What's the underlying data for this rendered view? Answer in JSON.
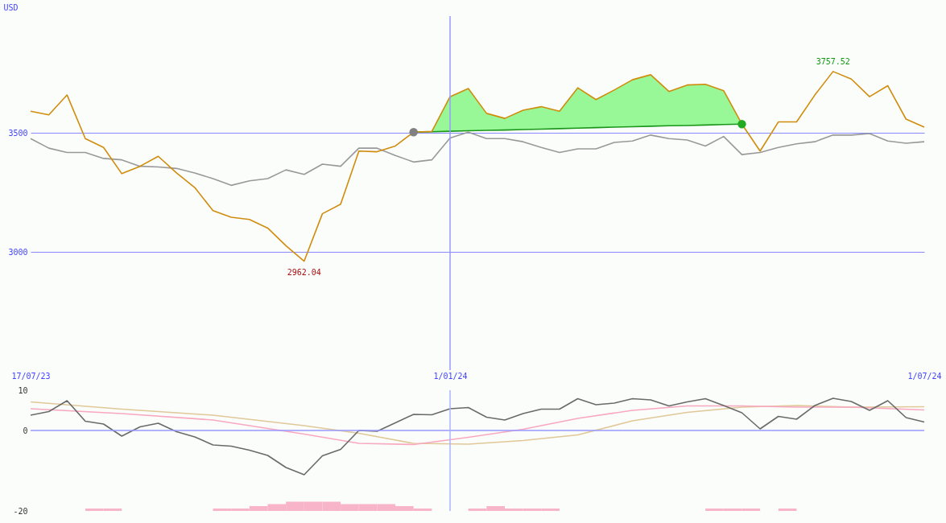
{
  "chart_data": [
    {
      "type": "line",
      "ylabel": "USD",
      "x": [
        "2023-07-24",
        "2023-07-31",
        "2023-08-07",
        "2023-08-14",
        "2023-08-21",
        "2023-08-28",
        "2023-09-04",
        "2023-09-11",
        "2023-09-18",
        "2023-09-25",
        "2023-10-02",
        "2023-10-09",
        "2023-10-16",
        "2023-10-23",
        "2023-10-30",
        "2023-11-06",
        "2023-11-13",
        "2023-11-20",
        "2023-11-27",
        "2023-12-04",
        "2023-12-11",
        "2023-12-18",
        "2023-12-25",
        "2024-01-01",
        "2024-01-08",
        "2024-01-15",
        "2024-01-22",
        "2024-01-29",
        "2024-02-05",
        "2024-02-12",
        "2024-02-19",
        "2024-02-26",
        "2024-03-04",
        "2024-03-11",
        "2024-03-18",
        "2024-03-25",
        "2024-04-01",
        "2024-04-08",
        "2024-04-15",
        "2024-04-22",
        "2024-04-29",
        "2024-05-06",
        "2024-05-13",
        "2024-05-20",
        "2024-05-27",
        "2024-06-03",
        "2024-06-10",
        "2024-06-17",
        "2024-06-24",
        "2024-07-01"
      ],
      "series": [
        {
          "type": "line",
          "color": "#1a961a",
          "x": [
            "2023-12-18",
            "2023-12-25",
            "2024-01-01",
            "2024-01-08",
            "2024-01-15",
            "2024-01-22",
            "2024-01-29",
            "2024-02-05",
            "2024-02-12",
            "2024-02-19",
            "2024-02-26",
            "2024-03-04",
            "2024-03-11",
            "2024-03-18",
            "2024-03-25",
            "2024-04-01",
            "2024-04-08",
            "2024-04-15",
            "2024-04-22"
          ],
          "values": [
            3503,
            3505,
            3507,
            3509,
            3511,
            3512,
            3514,
            3516,
            3518,
            3520,
            3522,
            3524,
            3526,
            3528,
            3530,
            3531,
            3533,
            3535,
            3537
          ],
          "lower": [
            3503,
            3505,
            3507,
            3509,
            3511,
            3512,
            3514,
            3516,
            3518,
            3520,
            3522,
            3524,
            3526,
            3528,
            3530,
            3531,
            3533,
            3535,
            3537
          ],
          "upper": [
            3503,
            3506,
            3652,
            3686,
            3582,
            3561,
            3595,
            3610,
            3591,
            3689,
            3640,
            3680,
            3723,
            3744,
            3674,
            3701,
            3704,
            3677,
            3537
          ]
        },
        {
          "color": "#999999",
          "values": [
            3476,
            3436,
            3418,
            3418,
            3393,
            3387,
            3360,
            3357,
            3351,
            3332,
            3308,
            3280,
            3299,
            3308,
            3345,
            3326,
            3369,
            3360,
            3436,
            3436,
            3405,
            3378,
            3387,
            3479,
            3503,
            3476,
            3476,
            3463,
            3439,
            3418,
            3433,
            3433,
            3460,
            3466,
            3491,
            3476,
            3470,
            3445,
            3485,
            3409,
            3418,
            3439,
            3454,
            3463,
            3491,
            3491,
            3497,
            3466,
            3457,
            3463
          ]
        },
        {
          "color": "#d08c0c",
          "values": [
            3591,
            3576,
            3659,
            3476,
            3439,
            3329,
            3360,
            3402,
            3332,
            3271,
            3174,
            3146,
            3137,
            3101,
            3027,
            2962.04,
            3161,
            3201,
            3424,
            3421,
            3445,
            3503,
            3506,
            3652,
            3686,
            3582,
            3561,
            3595,
            3610,
            3591,
            3689,
            3640,
            3680,
            3723,
            3744,
            3674,
            3701,
            3704,
            3677,
            3537,
            3424,
            3546,
            3546,
            3659,
            3757.52,
            3726,
            3652,
            3698,
            3558,
            3524
          ]
        },
        {
          "type": "scatter",
          "marker": "circle",
          "colors": [
            "#808080",
            "#22aa22"
          ],
          "x": [
            "2023-12-18",
            "2024-04-22"
          ],
          "values": [
            3503,
            3537
          ]
        }
      ],
      "xlim": [
        "2023-07-24",
        "2024-07-01"
      ],
      "xticks": [
        {
          "value": "2023-07-24",
          "label": "17/07/23"
        },
        {
          "value": "2024-01-01",
          "label": "1/01/24"
        },
        {
          "value": "2024-07-01",
          "label": "1/07/24"
        }
      ],
      "ylim": [
        2505,
        3990
      ],
      "yticks": [
        3000,
        3500
      ],
      "grid": "y",
      "ref_lines": [
        {
          "axis": "x",
          "value": "2024-01-01",
          "color": "#9999ff"
        }
      ],
      "annotations": [
        {
          "text": "3757.52",
          "x": "2024-05-27",
          "y": 3757.52
        },
        {
          "text": "2962.04",
          "x": "2023-11-06",
          "y": 2962.04
        }
      ]
    },
    {
      "type": "line",
      "x": [
        "2023-07-24",
        "2023-07-31",
        "2023-08-07",
        "2023-08-14",
        "2023-08-21",
        "2023-08-28",
        "2023-09-04",
        "2023-09-11",
        "2023-09-18",
        "2023-09-25",
        "2023-10-02",
        "2023-10-09",
        "2023-10-16",
        "2023-10-23",
        "2023-10-30",
        "2023-11-06",
        "2023-11-13",
        "2023-11-20",
        "2023-11-27",
        "2023-12-04",
        "2023-12-11",
        "2023-12-18",
        "2023-12-25",
        "2024-01-01",
        "2024-01-08",
        "2024-01-15",
        "2024-01-22",
        "2024-01-29",
        "2024-02-05",
        "2024-02-12",
        "2024-02-19",
        "2024-02-26",
        "2024-03-04",
        "2024-03-11",
        "2024-03-18",
        "2024-03-25",
        "2024-04-01",
        "2024-04-08",
        "2024-04-15",
        "2024-04-22",
        "2024-04-29",
        "2024-05-06",
        "2024-05-13",
        "2024-05-20",
        "2024-05-27",
        "2024-06-03",
        "2024-06-10",
        "2024-06-17",
        "2024-06-24",
        "2024-07-01"
      ],
      "series": [
        {
          "type": "bar",
          "color": "#f8b4c8",
          "x": [
            "2023-08-17T12:00",
            "2023-08-24T12:00",
            "2023-10-05T12:00",
            "2023-10-12T12:00",
            "2023-10-19T12:00",
            "2023-10-26T12:00",
            "2023-11-02T12:00",
            "2023-11-09T12:00",
            "2023-11-16T12:00",
            "2023-11-23T12:00",
            "2023-11-30T12:00",
            "2023-12-07T12:00",
            "2023-12-14T12:00",
            "2023-12-21T12:00",
            "2024-01-11T12:00",
            "2024-01-18T12:00",
            "2024-01-25T12:00",
            "2024-02-01T12:00",
            "2024-02-08T12:00",
            "2024-04-11T12:00",
            "2024-04-18T12:00",
            "2024-04-25T12:00",
            "2024-05-09T12:00"
          ],
          "values": [
            0.6,
            0.6,
            0.6,
            0.6,
            1.2,
            1.7,
            2.3,
            2.3,
            2.3,
            1.7,
            1.7,
            1.7,
            1.2,
            0.6,
            0.6,
            1.2,
            0.6,
            0.6,
            0.6,
            0.6,
            0.6,
            0.6,
            0.6
          ],
          "base": [
            -20,
            -20,
            -20,
            -20,
            -20,
            -20,
            -20,
            -20,
            -20,
            -20,
            -20,
            -20,
            -20,
            -20,
            -20,
            -20,
            -20,
            -20,
            -20,
            -20,
            -20,
            -20,
            -20
          ]
        },
        {
          "color": "#e0c898",
          "x": [
            "2023-07-24",
            "2023-08-28",
            "2023-10-02",
            "2023-11-06",
            "2023-11-27",
            "2023-12-18",
            "2024-01-08",
            "2024-01-29",
            "2024-02-19",
            "2024-03-11",
            "2024-04-01",
            "2024-04-22",
            "2024-05-13",
            "2024-06-03",
            "2024-07-01"
          ],
          "values": [
            7.1,
            5.3,
            3.8,
            1.2,
            -0.7,
            -3.2,
            -3.4,
            -2.5,
            -1.1,
            2.4,
            4.5,
            5.8,
            6.2,
            5.8,
            5.9
          ]
        },
        {
          "color": "#f8a8c0",
          "x": [
            "2023-07-24",
            "2023-08-28",
            "2023-10-02",
            "2023-11-06",
            "2023-11-27",
            "2023-12-18",
            "2024-01-08",
            "2024-01-29",
            "2024-02-19",
            "2024-03-11",
            "2024-04-01",
            "2024-04-22",
            "2024-05-13",
            "2024-06-03",
            "2024-07-01"
          ],
          "values": [
            5.4,
            4.2,
            2.6,
            -0.9,
            -3.2,
            -3.5,
            -1.7,
            0.3,
            3.0,
            5.0,
            6.1,
            6.1,
            5.8,
            5.8,
            5.1
          ]
        },
        {
          "color": "#6a6a6a",
          "values": [
            3.8,
            4.7,
            7.4,
            2.3,
            1.6,
            -1.4,
            0.9,
            1.8,
            -0.3,
            -1.6,
            -3.6,
            -3.9,
            -4.9,
            -6.2,
            -9.2,
            -11.0,
            -6.3,
            -4.7,
            0,
            -0.2,
            1.9,
            4.0,
            3.9,
            5.4,
            5.7,
            3.3,
            2.6,
            4.2,
            5.3,
            5.3,
            7.9,
            6.4,
            6.8,
            7.9,
            7.6,
            6.1,
            7.1,
            7.9,
            6.2,
            4.4,
            0.4,
            3.5,
            2.8,
            6.2,
            8.0,
            7.2,
            5.0,
            7.4,
            3.2,
            2.1
          ]
        }
      ],
      "xlim": [
        "2023-07-24",
        "2024-07-01"
      ],
      "ylim": [
        -20,
        10
      ],
      "yticks": [
        -20,
        0,
        10
      ],
      "tick_labels": "y",
      "ref_lines": [
        {
          "axis": "y",
          "value": 0,
          "color": "#9999ff"
        },
        {
          "axis": "x",
          "value": "2024-01-01",
          "color": "#aab4ff"
        }
      ]
    }
  ]
}
